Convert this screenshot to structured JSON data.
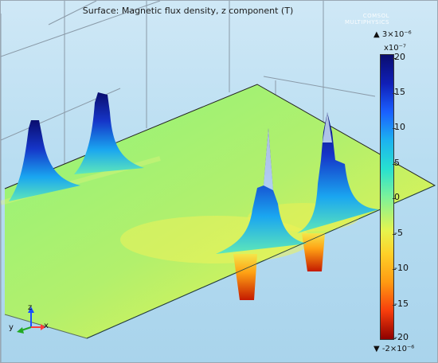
{
  "plot": {
    "title": "Surface: Magnetic flux density, z component (T)",
    "logo_line1": "COMSOL",
    "logo_line2": "MULTIPHYSICS"
  },
  "legend": {
    "max": "▲ 3×10⁻⁶",
    "exponent": "x10⁻⁷",
    "min": "▼ -2×10⁻⁶",
    "ticks": [
      "20",
      "15",
      "10",
      "5",
      "0",
      "-5",
      "-10",
      "-15",
      "-20"
    ]
  },
  "axes": {
    "x": "x",
    "y": "y",
    "z": "z"
  },
  "colors": {
    "plane": "#8ff37c",
    "peak": "#0a0d6e",
    "trough": "#c41a00",
    "axis_x": "#1a4fff",
    "axis_y": "#ff3b3b",
    "axis_z": "#22aa22"
  }
}
